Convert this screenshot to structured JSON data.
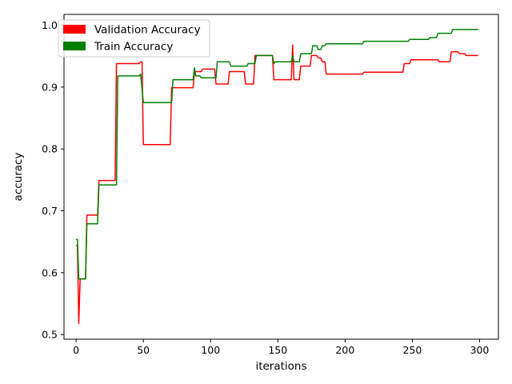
{
  "chart_data": {
    "type": "line",
    "title": "",
    "xlabel": "iterations",
    "ylabel": "accuracy",
    "xlim": [
      -9,
      314
    ],
    "ylim": [
      0.4925,
      1.0175
    ],
    "x_ticks": [
      0,
      50,
      100,
      150,
      200,
      250,
      300
    ],
    "y_ticks": [
      0.5,
      0.6,
      0.7,
      0.8,
      0.9,
      1.0
    ],
    "x_tick_labels": [
      "0",
      "50",
      "100",
      "150",
      "200",
      "250",
      "300"
    ],
    "y_tick_labels": [
      "0.5",
      "0.6",
      "0.7",
      "0.8",
      "0.9",
      "1.0"
    ],
    "grid": false,
    "legend_position": "top-left",
    "series": [
      {
        "name": "Validation Accuracy",
        "color": "#ff0000",
        "points": [
          [
            0,
            0.644
          ],
          [
            1,
            0.644
          ],
          [
            2,
            0.518
          ],
          [
            3,
            0.59
          ],
          [
            7,
            0.59
          ],
          [
            8,
            0.693
          ],
          [
            16,
            0.693
          ],
          [
            17,
            0.749
          ],
          [
            29,
            0.749
          ],
          [
            30,
            0.938
          ],
          [
            47,
            0.938
          ],
          [
            48,
            0.941
          ],
          [
            49,
            0.941
          ],
          [
            50,
            0.807
          ],
          [
            70,
            0.807
          ],
          [
            71,
            0.899
          ],
          [
            87,
            0.899
          ],
          [
            88,
            0.925
          ],
          [
            93,
            0.925
          ],
          [
            94,
            0.929
          ],
          [
            103,
            0.929
          ],
          [
            104,
            0.905
          ],
          [
            113,
            0.905
          ],
          [
            114,
            0.925
          ],
          [
            125,
            0.925
          ],
          [
            126,
            0.905
          ],
          [
            132,
            0.905
          ],
          [
            133,
            0.951
          ],
          [
            146,
            0.951
          ],
          [
            147,
            0.912
          ],
          [
            160,
            0.912
          ],
          [
            161,
            0.968
          ],
          [
            162,
            0.912
          ],
          [
            166,
            0.912
          ],
          [
            167,
            0.934
          ],
          [
            174,
            0.934
          ],
          [
            175,
            0.951
          ],
          [
            179,
            0.951
          ],
          [
            180,
            0.947
          ],
          [
            182,
            0.947
          ],
          [
            183,
            0.941
          ],
          [
            185,
            0.941
          ],
          [
            186,
            0.921
          ],
          [
            213,
            0.921
          ],
          [
            214,
            0.924
          ],
          [
            243,
            0.924
          ],
          [
            244,
            0.938
          ],
          [
            248,
            0.938
          ],
          [
            249,
            0.944
          ],
          [
            269,
            0.944
          ],
          [
            270,
            0.941
          ],
          [
            278,
            0.941
          ],
          [
            279,
            0.957
          ],
          [
            284,
            0.957
          ],
          [
            285,
            0.954
          ],
          [
            289,
            0.954
          ],
          [
            290,
            0.951
          ],
          [
            299,
            0.951
          ]
        ]
      },
      {
        "name": "Train Accuracy",
        "color": "#008000",
        "points": [
          [
            0,
            0.654
          ],
          [
            1,
            0.654
          ],
          [
            2,
            0.59
          ],
          [
            7,
            0.59
          ],
          [
            8,
            0.679
          ],
          [
            16,
            0.679
          ],
          [
            17,
            0.742
          ],
          [
            30,
            0.742
          ],
          [
            31,
            0.918
          ],
          [
            47,
            0.918
          ],
          [
            48,
            0.921
          ],
          [
            50,
            0.875
          ],
          [
            71,
            0.875
          ],
          [
            72,
            0.912
          ],
          [
            87,
            0.912
          ],
          [
            88,
            0.931
          ],
          [
            89,
            0.918
          ],
          [
            92,
            0.918
          ],
          [
            93,
            0.915
          ],
          [
            104,
            0.915
          ],
          [
            105,
            0.941
          ],
          [
            114,
            0.941
          ],
          [
            115,
            0.934
          ],
          [
            127,
            0.934
          ],
          [
            128,
            0.938
          ],
          [
            133,
            0.938
          ],
          [
            134,
            0.951
          ],
          [
            146,
            0.951
          ],
          [
            147,
            0.938
          ],
          [
            148,
            0.941
          ],
          [
            160,
            0.941
          ],
          [
            161,
            0.951
          ],
          [
            162,
            0.941
          ],
          [
            166,
            0.941
          ],
          [
            167,
            0.954
          ],
          [
            175,
            0.954
          ],
          [
            176,
            0.967
          ],
          [
            179,
            0.967
          ],
          [
            180,
            0.961
          ],
          [
            182,
            0.961
          ],
          [
            183,
            0.967
          ],
          [
            185,
            0.967
          ],
          [
            186,
            0.97
          ],
          [
            213,
            0.97
          ],
          [
            214,
            0.974
          ],
          [
            247,
            0.974
          ],
          [
            248,
            0.977
          ],
          [
            262,
            0.977
          ],
          [
            263,
            0.98
          ],
          [
            268,
            0.98
          ],
          [
            269,
            0.987
          ],
          [
            279,
            0.987
          ],
          [
            280,
            0.993
          ],
          [
            299,
            0.993
          ]
        ]
      }
    ]
  }
}
